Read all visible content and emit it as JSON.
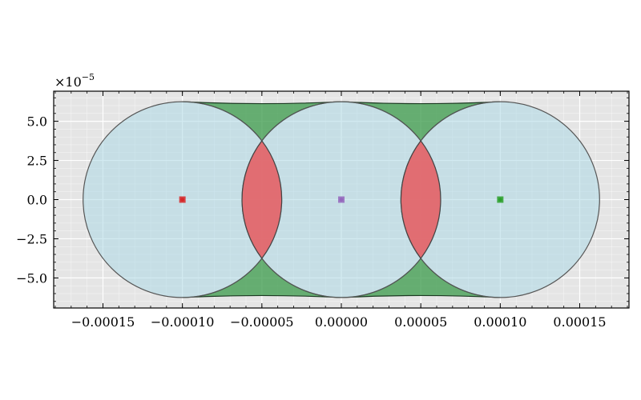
{
  "chart_data": {
    "type": "scatter",
    "title": "",
    "xlabel": "",
    "ylabel": "",
    "xlim": [
      -0.000181,
      0.000181
    ],
    "ylim": [
      -6.92e-05,
      6.92e-05
    ],
    "grid": true,
    "y_offset_text": "×10",
    "y_offset_exponent": "−5",
    "x_ticks": [
      {
        "value": -0.00015,
        "label": "−0.00015"
      },
      {
        "value": -0.0001,
        "label": "−0.00010"
      },
      {
        "value": -5e-05,
        "label": "−0.00005"
      },
      {
        "value": 0.0,
        "label": "0.00000"
      },
      {
        "value": 5e-05,
        "label": "0.00005"
      },
      {
        "value": 0.0001,
        "label": "0.00010"
      },
      {
        "value": 0.00015,
        "label": "0.00015"
      }
    ],
    "y_ticks": [
      {
        "value": 5e-05,
        "label": "5.0"
      },
      {
        "value": 2.5e-05,
        "label": "2.5"
      },
      {
        "value": 0.0,
        "label": "0.0"
      },
      {
        "value": -2.5e-05,
        "label": "−2.5"
      },
      {
        "value": -5e-05,
        "label": "−5.0"
      }
    ],
    "circles": [
      {
        "cx": -0.0001,
        "cy": 0.0,
        "r": 6.25e-05
      },
      {
        "cx": 0.0,
        "cy": 0.0,
        "r": 6.25e-05
      },
      {
        "cx": 0.0001,
        "cy": 0.0,
        "r": 6.25e-05
      }
    ],
    "centers": [
      {
        "x": -0.0001,
        "y": 0.0,
        "color": "#d62728"
      },
      {
        "x": 0.0,
        "y": 0.0,
        "color": "#9467bd"
      },
      {
        "x": 0.0001,
        "y": 0.0,
        "color": "#2ca02c"
      }
    ],
    "colors": {
      "circle_fill": "#add8e6",
      "overlap_fill": "#e8595e",
      "gap_fill": "#3a9a4a",
      "axes_bg": "#e5e5e5",
      "grid": "#ffffff"
    }
  }
}
